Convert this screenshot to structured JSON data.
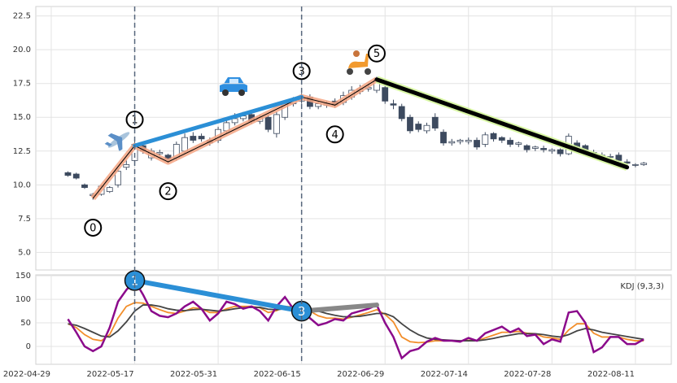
{
  "chart_data": [
    {
      "type": "candlestick",
      "x": [
        0,
        1,
        2,
        3,
        4,
        5,
        6,
        7,
        8,
        9,
        10,
        11,
        12,
        13,
        14,
        15,
        16,
        17,
        18,
        19,
        20,
        21,
        22,
        23,
        24,
        25,
        26,
        27,
        28,
        29,
        30,
        31,
        32,
        33,
        34,
        35,
        36,
        37,
        38,
        39,
        40,
        41,
        42,
        43,
        44,
        45,
        46,
        47,
        48,
        49,
        50,
        51,
        52,
        53,
        54,
        55,
        56,
        57,
        58,
        59,
        60,
        61,
        62,
        63,
        64,
        65,
        66,
        67,
        68,
        69
      ],
      "open": [
        10.9,
        10.8,
        10.0,
        9.2,
        9.3,
        9.5,
        10.0,
        11.3,
        11.8,
        12.9,
        12.0,
        12.3,
        12.2,
        12.0,
        12.5,
        13.6,
        13.6,
        13.3,
        13.3,
        14.0,
        14.6,
        14.9,
        15.2,
        14.7,
        15.0,
        13.8,
        15.0,
        16.0,
        16.2,
        16.5,
        15.8,
        15.9,
        16.2,
        16.1,
        16.5,
        16.9,
        17.1,
        17.0,
        17.2,
        16.0,
        15.8,
        15.0,
        14.5,
        14.0,
        15.0,
        13.9,
        13.1,
        13.2,
        13.2,
        13.3,
        13.0,
        13.8,
        13.5,
        13.3,
        13.0,
        12.9,
        12.7,
        12.7,
        12.5,
        12.6,
        12.3,
        13.1,
        12.9,
        12.4,
        12.2,
        12.1,
        12.2,
        11.7,
        11.5,
        11.5
      ],
      "high": [
        11.0,
        10.9,
        10.1,
        9.4,
        10.0,
        9.9,
        11.2,
        11.8,
        13.2,
        13.1,
        12.7,
        12.6,
        12.3,
        13.2,
        13.8,
        13.9,
        13.8,
        13.5,
        14.3,
        14.9,
        15.3,
        15.4,
        15.4,
        15.2,
        15.2,
        15.4,
        16.2,
        16.5,
        16.8,
        16.7,
        16.2,
        16.2,
        16.4,
        16.9,
        17.3,
        17.4,
        17.5,
        18.0,
        17.5,
        16.3,
        16.0,
        15.2,
        14.7,
        14.6,
        15.3,
        14.1,
        13.4,
        13.4,
        13.5,
        13.5,
        13.9,
        13.9,
        13.6,
        13.5,
        13.2,
        13.0,
        12.9,
        12.9,
        12.7,
        12.7,
        13.8,
        13.3,
        13.0,
        12.6,
        12.4,
        12.3,
        12.4,
        11.9,
        11.6,
        11.7
      ],
      "low": [
        10.6,
        10.4,
        9.7,
        8.9,
        9.2,
        9.4,
        9.8,
        11.1,
        11.6,
        12.3,
        11.8,
        12.1,
        11.6,
        11.8,
        12.3,
        13.1,
        13.2,
        12.9,
        13.1,
        13.8,
        14.4,
        14.7,
        14.5,
        14.5,
        13.9,
        13.5,
        14.8,
        15.8,
        16.0,
        15.6,
        15.6,
        15.7,
        15.7,
        15.9,
        16.3,
        16.7,
        16.9,
        16.8,
        16.0,
        15.6,
        14.7,
        13.8,
        13.9,
        13.8,
        14.0,
        12.9,
        12.9,
        13.0,
        13.0,
        12.6,
        12.8,
        13.2,
        13.1,
        12.8,
        12.8,
        12.4,
        12.5,
        12.4,
        12.3,
        12.1,
        12.2,
        12.6,
        12.3,
        12.1,
        11.9,
        11.9,
        11.6,
        11.3,
        11.3,
        11.4
      ],
      "close": [
        10.7,
        10.5,
        9.8,
        9.3,
        9.9,
        9.8,
        11.0,
        11.5,
        13.0,
        12.5,
        12.5,
        12.4,
        11.9,
        13.0,
        13.5,
        13.3,
        13.4,
        13.1,
        14.1,
        14.6,
        14.9,
        15.1,
        14.7,
        15.0,
        14.1,
        15.2,
        16.0,
        16.3,
        16.4,
        15.8,
        16.0,
        16.0,
        15.9,
        16.6,
        17.0,
        17.1,
        17.2,
        17.8,
        16.2,
        15.9,
        14.9,
        14.0,
        14.1,
        14.4,
        14.2,
        13.1,
        13.2,
        13.3,
        13.3,
        12.8,
        13.7,
        13.4,
        13.3,
        13.0,
        13.1,
        12.6,
        12.8,
        12.6,
        12.6,
        12.3,
        13.6,
        12.8,
        12.5,
        12.3,
        12.2,
        12.1,
        11.8,
        11.6,
        11.5,
        11.6
      ],
      "up_color": "#ffffff",
      "down_color": "#3d4a5f",
      "edge_color": "#3d4a5f",
      "xlim": [
        -3.85,
        72.3
      ],
      "ylim": [
        3.7,
        23.2
      ],
      "yticks": [
        {
          "value": 5,
          "label": "5.0"
        },
        7.5,
        {
          "value": 10,
          "label": "10.0"
        },
        12.5,
        {
          "value": 15,
          "label": "15.0"
        },
        17.5,
        {
          "value": 20,
          "label": "20.0"
        },
        22.5
      ],
      "grid": true,
      "waves": [
        {
          "label": "0",
          "x": 3,
          "y": 9.0
        },
        {
          "label": "1",
          "x": 8,
          "y": 12.9
        },
        {
          "label": "2",
          "x": 12,
          "y": 11.7
        },
        {
          "label": "3",
          "x": 28,
          "y": 16.5
        },
        {
          "label": "4",
          "x": 32,
          "y": 15.9
        },
        {
          "label": "5",
          "x": 37,
          "y": 17.8
        }
      ],
      "wave_color": "#f4a582",
      "lines": [
        {
          "color": "#2b8fd6",
          "x": [
            8,
            28
          ],
          "y": [
            12.9,
            16.5
          ]
        },
        {
          "color": "#000000",
          "glow": "#d4f59a",
          "x": [
            37,
            67
          ],
          "y": [
            17.8,
            11.3
          ]
        }
      ],
      "x_markers": [
        8,
        28
      ]
    },
    {
      "type": "line",
      "annotation": "KDJ (9,3,3)",
      "x": [
        0,
        1,
        2,
        3,
        4,
        5,
        6,
        7,
        8,
        9,
        10,
        11,
        12,
        13,
        14,
        15,
        16,
        17,
        18,
        19,
        20,
        21,
        22,
        23,
        24,
        25,
        26,
        27,
        28,
        29,
        30,
        31,
        32,
        33,
        34,
        35,
        36,
        37,
        38,
        39,
        40,
        41,
        42,
        43,
        44,
        45,
        46,
        47,
        48,
        49,
        50,
        51,
        52,
        53,
        54,
        55,
        56,
        57,
        58,
        59,
        60,
        61,
        62,
        63,
        64,
        65,
        66,
        67,
        68,
        69
      ],
      "series": [
        {
          "color": "#f28e2b",
          "values": [
            48,
            40,
            25,
            15,
            12,
            25,
            60,
            85,
            93,
            92,
            85,
            78,
            72,
            70,
            75,
            82,
            80,
            72,
            72,
            80,
            85,
            85,
            85,
            82,
            72,
            76,
            85,
            84,
            82,
            75,
            65,
            60,
            60,
            58,
            62,
            67,
            72,
            78,
            68,
            52,
            20,
            10,
            8,
            9,
            12,
            12,
            12,
            11,
            13,
            12,
            18,
            24,
            30,
            30,
            32,
            28,
            27,
            20,
            18,
            15,
            35,
            48,
            48,
            28,
            20,
            20,
            20,
            15,
            12,
            12
          ]
        },
        {
          "color": "#444444",
          "values": [
            48,
            45,
            38,
            30,
            22,
            20,
            33,
            52,
            75,
            88,
            88,
            85,
            80,
            77,
            76,
            78,
            79,
            77,
            75,
            77,
            80,
            82,
            83,
            83,
            79,
            78,
            80,
            82,
            82,
            80,
            75,
            70,
            66,
            63,
            63,
            64,
            67,
            70,
            70,
            63,
            48,
            35,
            25,
            18,
            15,
            14,
            13,
            12,
            12,
            12,
            14,
            17,
            21,
            24,
            27,
            27,
            27,
            25,
            22,
            20,
            25,
            33,
            38,
            35,
            30,
            27,
            24,
            21,
            18,
            15
          ]
        },
        {
          "color": "#8b0a8b",
          "values": [
            58,
            30,
            0,
            -10,
            0,
            40,
            95,
            120,
            140,
            110,
            75,
            65,
            62,
            70,
            85,
            95,
            80,
            55,
            70,
            95,
            90,
            80,
            85,
            75,
            55,
            85,
            105,
            80,
            75,
            60,
            45,
            50,
            58,
            55,
            70,
            75,
            80,
            88,
            50,
            20,
            -25,
            -10,
            -5,
            10,
            18,
            12,
            12,
            10,
            18,
            12,
            28,
            35,
            42,
            30,
            38,
            22,
            25,
            5,
            15,
            10,
            72,
            75,
            50,
            -12,
            -2,
            20,
            20,
            5,
            5,
            15
          ]
        }
      ],
      "points": [
        {
          "label": "1",
          "x": 8,
          "y": 140
        },
        {
          "label": "3",
          "x": 28,
          "y": 75
        }
      ],
      "point_color": "#2b8fd6",
      "lines": [
        {
          "color": "#2b8fd6",
          "x": [
            8,
            28
          ],
          "y": [
            140,
            75
          ]
        },
        {
          "color": "#888888",
          "x": [
            28,
            37
          ],
          "y": [
            75,
            88
          ]
        }
      ],
      "xlim": [
        -3.85,
        72.3
      ],
      "ylim": [
        -38,
        152
      ],
      "yticks": [
        0,
        50,
        100,
        150
      ],
      "xticks": [
        {
          "value": -2,
          "label": "2022-04-29"
        },
        {
          "value": 8,
          "label": "2022-05-17"
        },
        {
          "value": 18,
          "label": "2022-05-31"
        },
        {
          "value": 28,
          "label": "2022-06-15"
        },
        {
          "value": 38,
          "label": "2022-06-29"
        },
        {
          "value": 48,
          "label": "2022-07-14"
        },
        {
          "value": 58,
          "label": "2022-07-28"
        },
        {
          "value": 68,
          "label": "2022-08-11"
        }
      ],
      "grid": true
    }
  ]
}
